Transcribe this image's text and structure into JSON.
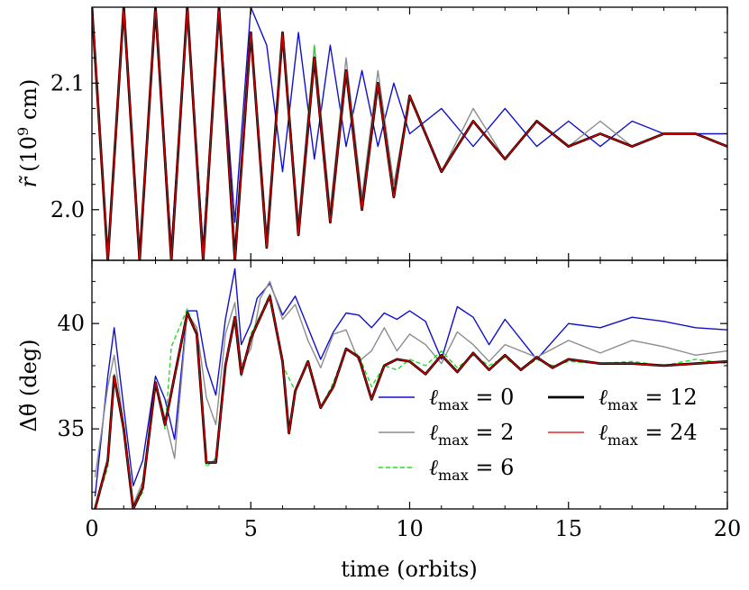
{
  "chart_data": [
    {
      "type": "line",
      "panel": "top",
      "xlabel": "",
      "ylabel_main": "r̃",
      "ylabel_unit": "(10",
      "ylabel_exp": "9",
      "ylabel_tail": " cm)",
      "xlim": [
        0,
        20
      ],
      "ylim": [
        1.96,
        2.16
      ],
      "yticks": [
        2.0,
        2.1
      ],
      "ytick_labels": [
        "2.0",
        "2.1"
      ],
      "series": [
        {
          "name": "ℓmax = 0",
          "color": "#1010cc",
          "width": 1.4,
          "dash": "",
          "x": [
            0,
            0.5,
            1,
            1.5,
            2,
            2.5,
            3,
            3.5,
            4,
            4.5,
            5,
            5.5,
            6,
            6.5,
            7,
            7.5,
            8,
            8.5,
            9,
            9.5,
            10,
            11,
            12,
            13,
            14,
            15,
            16,
            17,
            18,
            19,
            20
          ],
          "y": [
            2.16,
            1.96,
            2.16,
            1.96,
            2.16,
            1.97,
            2.16,
            1.97,
            2.16,
            1.99,
            2.16,
            2.13,
            2.03,
            2.14,
            2.04,
            2.13,
            2.05,
            2.11,
            2.05,
            2.1,
            2.06,
            2.08,
            2.05,
            2.08,
            2.05,
            2.07,
            2.05,
            2.07,
            2.06,
            2.06,
            2.06
          ]
        },
        {
          "name": "ℓmax = 2",
          "color": "#8c8c8c",
          "width": 1.4,
          "dash": "",
          "x": [
            0,
            0.5,
            1,
            1.5,
            2,
            2.5,
            3,
            3.5,
            4,
            4.5,
            5,
            5.5,
            6,
            6.5,
            7,
            7.5,
            8,
            8.5,
            9,
            9.5,
            10,
            11,
            12,
            13,
            14,
            15,
            16,
            17,
            18,
            19,
            20
          ],
          "y": [
            2.16,
            1.96,
            2.16,
            1.96,
            2.16,
            1.96,
            2.16,
            1.96,
            2.16,
            1.97,
            2.14,
            1.98,
            2.14,
            1.99,
            2.13,
            2.0,
            2.12,
            2.01,
            2.11,
            2.02,
            2.09,
            2.03,
            2.08,
            2.04,
            2.07,
            2.05,
            2.07,
            2.05,
            2.06,
            2.06,
            2.05
          ]
        },
        {
          "name": "ℓmax = 6",
          "color": "#22dd22",
          "width": 1.4,
          "dash": "5,3",
          "x": [
            0,
            0.5,
            1,
            1.5,
            2,
            2.5,
            3,
            3.5,
            4,
            4.5,
            5,
            5.5,
            6,
            6.5,
            7,
            7.5,
            8,
            8.5,
            9,
            9.5,
            10,
            11,
            12,
            13,
            14,
            15,
            16,
            17,
            18,
            19,
            20
          ],
          "y": [
            2.16,
            1.96,
            2.16,
            1.96,
            2.16,
            1.96,
            2.16,
            1.96,
            2.16,
            1.96,
            2.14,
            1.97,
            2.14,
            1.98,
            2.13,
            1.99,
            2.11,
            2.0,
            2.1,
            2.01,
            2.09,
            2.03,
            2.07,
            2.04,
            2.07,
            2.05,
            2.06,
            2.05,
            2.06,
            2.06,
            2.05
          ]
        },
        {
          "name": "ℓmax = 12",
          "color": "#000000",
          "width": 2.8,
          "dash": "",
          "x": [
            0,
            0.5,
            1,
            1.5,
            2,
            2.5,
            3,
            3.5,
            4,
            4.5,
            5,
            5.5,
            6,
            6.5,
            7,
            7.5,
            8,
            8.5,
            9,
            9.5,
            10,
            11,
            12,
            13,
            14,
            15,
            16,
            17,
            18,
            19,
            20
          ],
          "y": [
            2.16,
            1.96,
            2.16,
            1.96,
            2.16,
            1.96,
            2.16,
            1.96,
            2.16,
            1.96,
            2.14,
            1.97,
            2.14,
            1.98,
            2.12,
            1.99,
            2.11,
            2.0,
            2.1,
            2.01,
            2.09,
            2.03,
            2.07,
            2.04,
            2.07,
            2.05,
            2.06,
            2.05,
            2.06,
            2.06,
            2.05
          ]
        },
        {
          "name": "ℓmax = 24",
          "color": "#dd0000",
          "width": 1.3,
          "dash": "",
          "x": [
            0,
            0.5,
            1,
            1.5,
            2,
            2.5,
            3,
            3.5,
            4,
            4.5,
            5,
            5.5,
            6,
            6.5,
            7,
            7.5,
            8,
            8.5,
            9,
            9.5,
            10,
            11,
            12,
            13,
            14,
            15,
            16,
            17,
            18,
            19,
            20
          ],
          "y": [
            2.16,
            1.96,
            2.16,
            1.96,
            2.16,
            1.96,
            2.16,
            1.96,
            2.16,
            1.96,
            2.14,
            1.97,
            2.14,
            1.98,
            2.12,
            1.99,
            2.11,
            2.0,
            2.1,
            2.01,
            2.09,
            2.03,
            2.07,
            2.04,
            2.07,
            2.05,
            2.06,
            2.05,
            2.06,
            2.06,
            2.05
          ]
        }
      ]
    },
    {
      "type": "line",
      "panel": "bottom",
      "xlabel": "time (orbits)",
      "ylabel": "Δθ̃ (deg)",
      "xlim": [
        0,
        20
      ],
      "ylim": [
        31.2,
        43.0
      ],
      "xticks": [
        0,
        5,
        10,
        15,
        20
      ],
      "xtick_labels": [
        "0",
        "5",
        "10",
        "15",
        "20"
      ],
      "yticks": [
        35,
        40
      ],
      "ytick_labels": [
        "35",
        "40"
      ],
      "series": [
        {
          "name": "ℓmax = 0",
          "color": "#1010cc",
          "width": 1.4,
          "dash": "",
          "x": [
            0.1,
            0.5,
            0.7,
            1,
            1.3,
            1.6,
            2,
            2.3,
            2.6,
            3,
            3.3,
            3.6,
            3.9,
            4.2,
            4.5,
            4.7,
            5,
            5.2,
            5.6,
            6,
            6.4,
            6.8,
            7.2,
            7.6,
            8,
            8.4,
            8.8,
            9.2,
            9.6,
            10,
            10.5,
            11,
            11.5,
            12,
            12.5,
            13,
            14,
            15,
            16,
            17,
            18,
            19,
            20
          ],
          "y": [
            31.8,
            37.5,
            39.8,
            36.0,
            32.3,
            33.5,
            37.5,
            36.4,
            34.5,
            40.6,
            40.6,
            38.0,
            36.6,
            40.2,
            42.6,
            39.0,
            40.0,
            41.2,
            41.9,
            40.4,
            41.3,
            39.8,
            38.3,
            39.6,
            40.5,
            40.4,
            39.8,
            40.5,
            40.2,
            40.6,
            40.1,
            38.3,
            40.8,
            40.3,
            39.0,
            40.2,
            38.3,
            40.0,
            39.8,
            40.3,
            40.1,
            39.8,
            39.7
          ]
        },
        {
          "name": "ℓmax = 2",
          "color": "#8c8c8c",
          "width": 1.4,
          "dash": "",
          "x": [
            0.1,
            0.5,
            0.7,
            1,
            1.3,
            1.6,
            2,
            2.3,
            2.6,
            3,
            3.3,
            3.6,
            3.9,
            4.2,
            4.5,
            4.7,
            5,
            5.3,
            5.6,
            6,
            6.4,
            6.8,
            7.2,
            7.6,
            8,
            8.4,
            8.8,
            9.2,
            9.6,
            10,
            10.5,
            11,
            11.5,
            12,
            12.5,
            13,
            14,
            15,
            16,
            17,
            18,
            19,
            20
          ],
          "y": [
            32.7,
            37.0,
            38.5,
            35.2,
            31.4,
            32.5,
            37.2,
            35.5,
            33.6,
            40.5,
            39.8,
            36.5,
            35.2,
            39.5,
            41.0,
            38.0,
            38.8,
            41.2,
            42.0,
            40.2,
            40.9,
            39.2,
            37.9,
            39.5,
            39.7,
            38.2,
            38.7,
            39.8,
            38.7,
            39.5,
            39.0,
            38.1,
            39.6,
            39.0,
            38.2,
            39.0,
            38.4,
            39.2,
            38.6,
            39.2,
            38.9,
            38.5,
            38.7
          ]
        },
        {
          "name": "ℓmax = 6",
          "color": "#22dd22",
          "width": 1.4,
          "dash": "5,3",
          "x": [
            0.1,
            0.5,
            0.7,
            1,
            1.3,
            1.6,
            2,
            2.3,
            2.5,
            3,
            3.3,
            3.6,
            3.9,
            4.2,
            4.5,
            4.7,
            5,
            5.3,
            5.6,
            6,
            6.4,
            6.8,
            7.2,
            7.6,
            8,
            8.4,
            8.8,
            9.2,
            9.6,
            10,
            10.5,
            11,
            11.5,
            12,
            12.5,
            13,
            13.5,
            14,
            14.5,
            15,
            16,
            17,
            18,
            19,
            20
          ],
          "y": [
            31.2,
            33.2,
            37.6,
            34.8,
            31.2,
            32.0,
            37.2,
            35.0,
            38.9,
            40.7,
            39.5,
            33.2,
            33.6,
            38.0,
            40.2,
            37.5,
            39.5,
            40.4,
            41.4,
            38.0,
            36.8,
            38.3,
            36.0,
            37.2,
            38.8,
            38.5,
            37.0,
            38.0,
            37.8,
            38.3,
            38.0,
            38.7,
            37.9,
            38.5,
            38.0,
            38.4,
            37.8,
            38.3,
            38.0,
            38.2,
            38.1,
            38.2,
            38.0,
            38.3,
            38.1
          ]
        },
        {
          "name": "ℓmax = 12",
          "color": "#000000",
          "width": 2.8,
          "dash": "",
          "x": [
            0.1,
            0.5,
            0.7,
            1,
            1.3,
            1.6,
            2,
            2.3,
            2.6,
            3,
            3.3,
            3.6,
            3.9,
            4.2,
            4.5,
            4.7,
            5,
            5.3,
            5.6,
            6,
            6.2,
            6.4,
            6.8,
            7.2,
            7.6,
            8,
            8.4,
            8.8,
            9.2,
            9.6,
            10,
            10.5,
            11,
            11.5,
            12,
            12.5,
            13,
            13.5,
            14,
            14.5,
            15,
            16,
            17,
            18,
            19,
            20
          ],
          "y": [
            31.2,
            33.5,
            37.5,
            35.0,
            31.2,
            32.2,
            37.2,
            35.2,
            37.5,
            40.5,
            39.5,
            33.4,
            33.4,
            38.0,
            40.3,
            37.6,
            39.3,
            40.3,
            41.3,
            38.2,
            34.8,
            36.8,
            38.2,
            36.0,
            37.0,
            38.8,
            38.4,
            36.4,
            38.0,
            38.3,
            38.2,
            37.6,
            38.5,
            37.7,
            38.6,
            37.8,
            38.5,
            37.8,
            38.4,
            37.9,
            38.3,
            38.1,
            38.1,
            38.0,
            38.1,
            38.2
          ]
        },
        {
          "name": "ℓmax = 24",
          "color": "#dd0000",
          "width": 1.3,
          "dash": "",
          "x": [
            0.1,
            0.5,
            0.7,
            1,
            1.3,
            1.6,
            2,
            2.3,
            2.6,
            3,
            3.3,
            3.6,
            3.9,
            4.2,
            4.5,
            4.7,
            5,
            5.3,
            5.6,
            6,
            6.2,
            6.4,
            6.8,
            7.2,
            7.6,
            8,
            8.4,
            8.8,
            9.2,
            9.6,
            10,
            10.5,
            11,
            11.5,
            12,
            12.5,
            13,
            13.5,
            14,
            14.5,
            15,
            16,
            17,
            18,
            19,
            20
          ],
          "y": [
            31.2,
            33.5,
            37.5,
            35.0,
            31.2,
            32.2,
            37.2,
            35.2,
            37.5,
            40.5,
            39.5,
            33.4,
            33.4,
            38.0,
            40.3,
            37.6,
            39.3,
            40.3,
            41.3,
            38.2,
            34.8,
            36.8,
            38.2,
            36.0,
            37.0,
            38.8,
            38.4,
            36.4,
            38.0,
            38.3,
            38.2,
            37.6,
            38.5,
            37.7,
            38.6,
            37.8,
            38.5,
            37.8,
            38.4,
            37.9,
            38.3,
            38.1,
            38.1,
            38.0,
            38.1,
            38.2
          ]
        }
      ],
      "legend": {
        "placement": "lower-right",
        "entries": [
          {
            "symbol": "ℓ",
            "sub": "max",
            "eq": " = 0",
            "color": "#1010cc",
            "dash": "",
            "width": 1.4
          },
          {
            "symbol": "ℓ",
            "sub": "max",
            "eq": " = 12",
            "color": "#000000",
            "dash": "",
            "width": 2.8
          },
          {
            "symbol": "ℓ",
            "sub": "max",
            "eq": " = 2",
            "color": "#8c8c8c",
            "dash": "",
            "width": 1.4
          },
          {
            "symbol": "ℓ",
            "sub": "max",
            "eq": " = 24",
            "color": "#dd0000",
            "dash": "",
            "width": 1.3
          },
          {
            "symbol": "ℓ",
            "sub": "max",
            "eq": " = 6",
            "color": "#22dd22",
            "dash": "5,3",
            "width": 1.4
          }
        ]
      }
    }
  ]
}
